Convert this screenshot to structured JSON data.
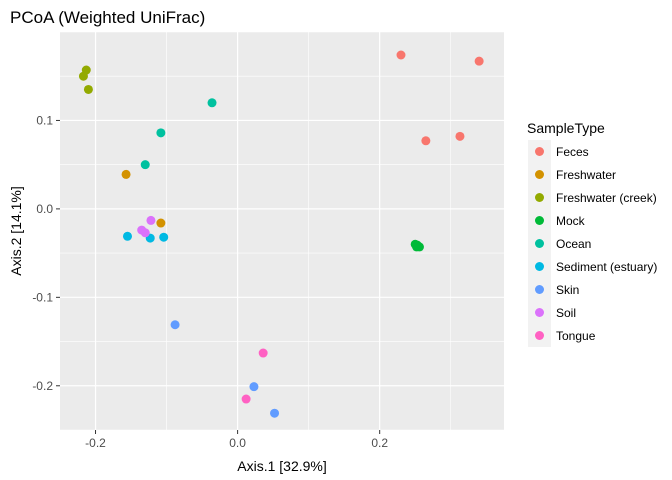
{
  "chart_data": {
    "type": "scatter",
    "title": "PCoA (Weighted UniFrac)",
    "xlabel": "Axis.1   [32.9%]",
    "ylabel": "Axis.2   [14.1%]",
    "xlim": [
      -0.25,
      0.375
    ],
    "ylim": [
      -0.25,
      0.2
    ],
    "x_ticks": [
      -0.2,
      0.0,
      0.2
    ],
    "x_tick_labels": [
      "-0.2",
      "0.0",
      "0.2"
    ],
    "y_ticks": [
      -0.2,
      -0.1,
      0.0,
      0.1
    ],
    "y_tick_labels": [
      "-0.2",
      "-0.1",
      "0.0",
      "0.1"
    ],
    "grid": true,
    "legend_title": "SampleType",
    "legend_position": "right",
    "series": [
      {
        "name": "Feces",
        "color": "#F8766D",
        "points": [
          [
            0.23,
            0.174
          ],
          [
            0.34,
            0.167
          ],
          [
            0.265,
            0.077
          ],
          [
            0.313,
            0.082
          ]
        ]
      },
      {
        "name": "Freshwater",
        "color": "#D39200",
        "points": [
          [
            -0.157,
            0.039
          ],
          [
            -0.108,
            -0.016
          ]
        ]
      },
      {
        "name": "Freshwater (creek)",
        "color": "#93AA00",
        "points": [
          [
            -0.217,
            0.15
          ],
          [
            -0.213,
            0.157
          ],
          [
            -0.21,
            0.135
          ]
        ]
      },
      {
        "name": "Mock",
        "color": "#00BA38",
        "points": [
          [
            0.25,
            -0.04
          ],
          [
            0.253,
            -0.041
          ],
          [
            0.256,
            -0.043
          ],
          [
            0.252,
            -0.043
          ]
        ]
      },
      {
        "name": "Ocean",
        "color": "#00C19F",
        "points": [
          [
            -0.036,
            0.12
          ],
          [
            -0.108,
            0.086
          ],
          [
            -0.13,
            0.05
          ]
        ]
      },
      {
        "name": "Sediment (estuary)",
        "color": "#00B9E3",
        "points": [
          [
            -0.155,
            -0.031
          ],
          [
            -0.123,
            -0.033
          ],
          [
            -0.104,
            -0.032
          ]
        ]
      },
      {
        "name": "Skin",
        "color": "#619CFF",
        "points": [
          [
            -0.088,
            -0.131
          ],
          [
            0.023,
            -0.201
          ],
          [
            0.052,
            -0.231
          ]
        ]
      },
      {
        "name": "Soil",
        "color": "#DB72FB",
        "points": [
          [
            -0.135,
            -0.024
          ],
          [
            -0.13,
            -0.027
          ],
          [
            -0.122,
            -0.013
          ]
        ]
      },
      {
        "name": "Tongue",
        "color": "#FF61C3",
        "points": [
          [
            0.036,
            -0.163
          ],
          [
            0.012,
            -0.215
          ]
        ]
      }
    ]
  }
}
